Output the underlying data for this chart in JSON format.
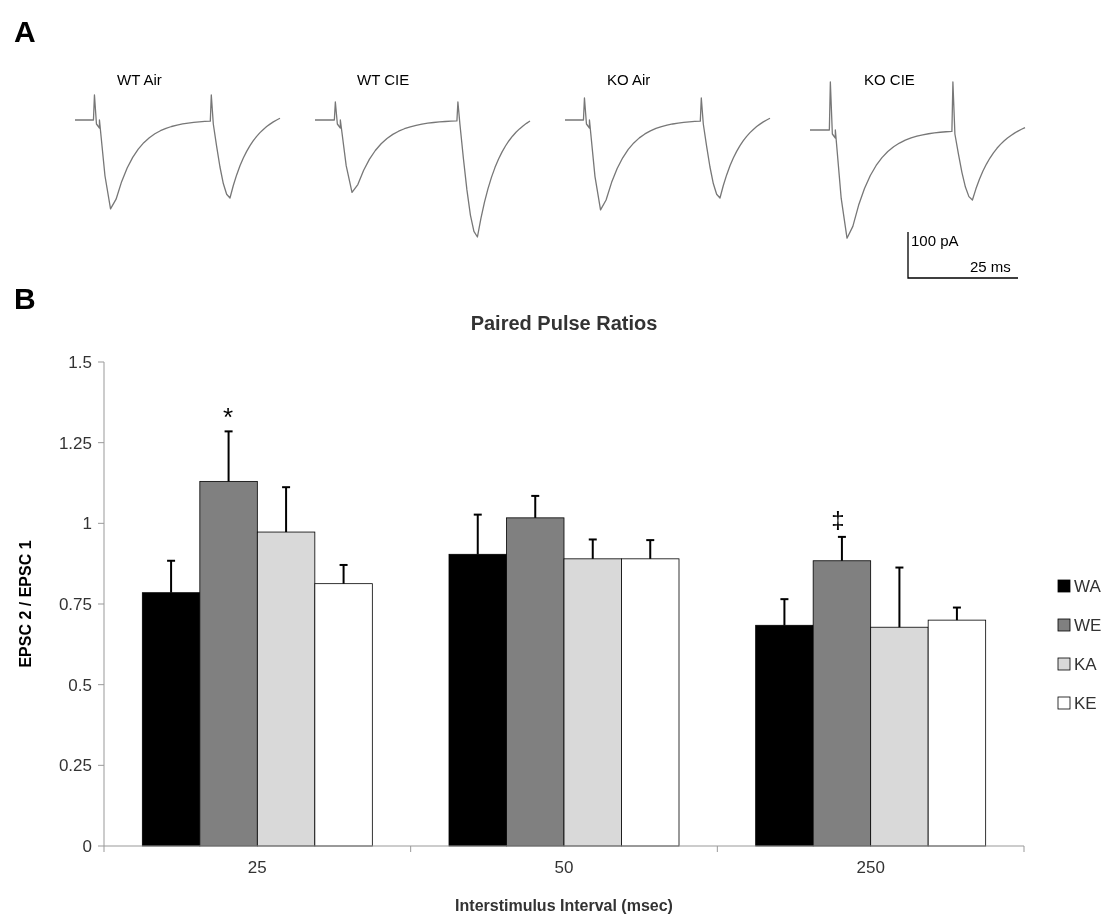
{
  "chart_data": [
    {
      "type": "other",
      "annotations": [
        "A",
        "WT Air",
        "WT CIE",
        "KO Air",
        "KO CIE",
        "100 pA",
        "25 ms"
      ]
    },
    {
      "type": "bar",
      "title": "Paired Pulse Ratios",
      "xlabel": "Interstimulus Interval (msec)",
      "ylabel": "EPSC 2 / EPSC 1",
      "categories": [
        "25",
        "50",
        "250"
      ],
      "series": [
        {
          "name": "WA",
          "color": "#000000",
          "values": [
            0.785,
            0.904,
            0.684
          ],
          "errors": [
            [
              0.785,
              0.884
            ],
            [
              0.904,
              1.027
            ],
            [
              0.684,
              0.765
            ]
          ]
        },
        {
          "name": "WE",
          "color": "#808080",
          "values": [
            1.13,
            1.017,
            0.884
          ],
          "errors": [
            [
              1.13,
              1.285
            ],
            [
              1.017,
              1.085
            ],
            [
              0.884,
              0.958
            ]
          ]
        },
        {
          "name": "KA",
          "color": "#d9d9d9",
          "values": [
            0.973,
            0.89,
            0.678
          ],
          "errors": [
            [
              0.973,
              1.112
            ],
            [
              0.89,
              0.95
            ],
            [
              0.678,
              0.863
            ]
          ]
        },
        {
          "name": "KE",
          "color": "#ffffff",
          "values": [
            0.813,
            0.89,
            0.7
          ],
          "errors": [
            [
              0.813,
              0.871
            ],
            [
              0.89,
              0.948
            ],
            [
              0.7,
              0.739
            ]
          ]
        }
      ],
      "ylim": [
        0,
        1.5
      ],
      "yticks": [
        0,
        0.25,
        0.5,
        0.75,
        1,
        1.25,
        1.5
      ],
      "grid": false,
      "legend": "right",
      "annotations": [
        "B",
        "*",
        "‡"
      ]
    }
  ]
}
